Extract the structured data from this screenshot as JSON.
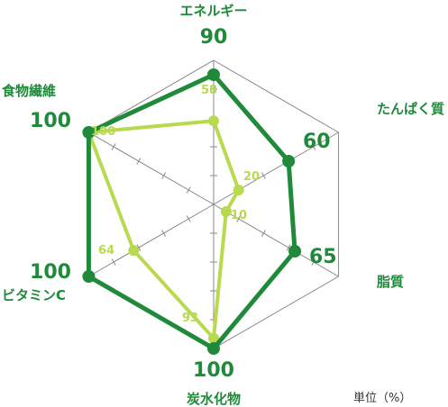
{
  "chart_data": {
    "type": "radar",
    "unit": "単位（%）",
    "axes": [
      "エネルギー",
      "たんぱく質",
      "脂質",
      "炭水化物",
      "ビタミンC",
      "食物繊維"
    ],
    "series": [
      {
        "values": [
          90,
          60,
          65,
          100,
          100,
          100
        ],
        "color": "#1f8a3a"
      },
      {
        "values": [
          58,
          20,
          10,
          93,
          64,
          100
        ],
        "color": "#b9d94e"
      }
    ],
    "rmax": 100,
    "grid_color": "#888888"
  }
}
